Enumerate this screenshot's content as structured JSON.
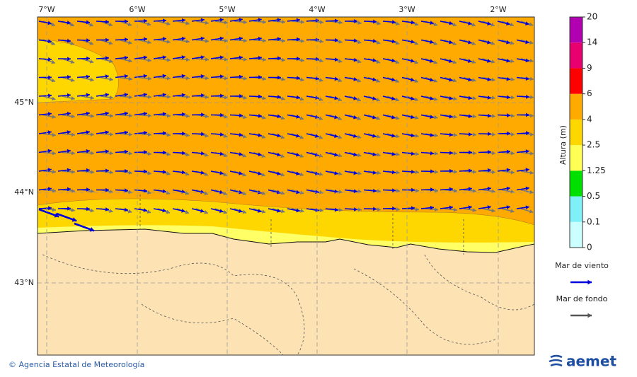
{
  "map": {
    "lon_labels": [
      "7°W",
      "6°W",
      "5°W",
      "4°W",
      "3°W",
      "2°W"
    ],
    "lat_labels": [
      "45°N",
      "44°N",
      "43°N"
    ]
  },
  "colorbar": {
    "title": "Altura (m)",
    "ticks": [
      0,
      0.1,
      0.5,
      1.25,
      2.5,
      4,
      6,
      9,
      14,
      20
    ],
    "colors": [
      "#ccffff",
      "#80f0f8",
      "#00e000",
      "#ffff55",
      "#ffd700",
      "#ffaa00",
      "#ff0000",
      "#e8006e",
      "#b000b0"
    ]
  },
  "legend": [
    {
      "label": "Mar de viento",
      "color": "#0000dd"
    },
    {
      "label": "Mar de fondo",
      "color": "#555555"
    }
  ],
  "footer": "© Agencia Estatal de Meteorología",
  "logo": "aemet"
}
